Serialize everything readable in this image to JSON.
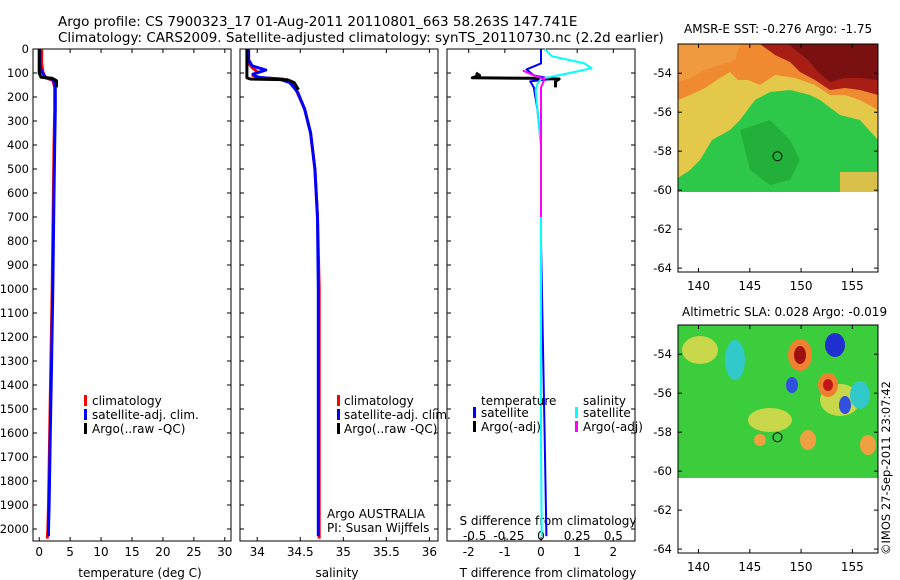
{
  "header": {
    "line1": "Argo profile: CS 7900323_17 01-Aug-2011 20110801_663 58.263S 147.741E",
    "line2": "Climatology: CARS2009. Satellite-adjusted climatology: synTS_20110730.nc (2.2d earlier)"
  },
  "colors": {
    "climatology": "#ff0000",
    "satellite": "#0000ff",
    "argo": "#000000",
    "satellite_s": "#00ffff",
    "argo_s": "#ff00ff"
  },
  "chart_data": [
    {
      "type": "line",
      "id": "temperature",
      "xlabel": "temperature (deg C)",
      "xlim": [
        -1,
        31
      ],
      "ylim": [
        2050,
        0
      ],
      "xticks": [
        0,
        5,
        10,
        15,
        20,
        25,
        30
      ],
      "yticks": [
        0,
        100,
        200,
        300,
        400,
        500,
        600,
        700,
        800,
        900,
        1000,
        1100,
        1200,
        1300,
        1400,
        1500,
        1600,
        1700,
        1800,
        1900,
        2000
      ],
      "series": [
        {
          "name": "climatology",
          "color": "#ff0000",
          "width": 3,
          "points": [
            [
              0.4,
              0
            ],
            [
              0.4,
              60
            ],
            [
              0.6,
              95
            ],
            [
              1.0,
              120
            ],
            [
              2.2,
              130
            ],
            [
              2.5,
              160
            ],
            [
              2.5,
              250
            ],
            [
              2.4,
              400
            ],
            [
              2.3,
              600
            ],
            [
              2.2,
              800
            ],
            [
              2.1,
              1000
            ],
            [
              1.9,
              1300
            ],
            [
              1.7,
              1600
            ],
            [
              1.5,
              1900
            ],
            [
              1.4,
              2000
            ],
            [
              1.3,
              2040
            ]
          ]
        },
        {
          "name": "satellite-adj. clim.",
          "color": "#0000ff",
          "width": 3,
          "points": [
            [
              0.1,
              0
            ],
            [
              0.1,
              60
            ],
            [
              0.3,
              90
            ],
            [
              1.0,
              118
            ],
            [
              2.3,
              128
            ],
            [
              2.6,
              160
            ],
            [
              2.6,
              250
            ],
            [
              2.5,
              400
            ],
            [
              2.4,
              600
            ],
            [
              2.3,
              800
            ],
            [
              2.2,
              1000
            ],
            [
              2.0,
              1300
            ],
            [
              1.8,
              1600
            ],
            [
              1.6,
              1900
            ],
            [
              1.5,
              2000
            ],
            [
              1.5,
              2030
            ]
          ]
        },
        {
          "name": "Argo(..raw -QC)",
          "color": "#000000",
          "width": 3,
          "points": [
            [
              0.0,
              0
            ],
            [
              0.0,
              100
            ],
            [
              0.3,
              118
            ],
            [
              2.1,
              122
            ],
            [
              2.8,
              132
            ],
            [
              2.8,
              160
            ]
          ]
        }
      ]
    },
    {
      "type": "line",
      "id": "salinity",
      "xlabel": "salinity",
      "xlim": [
        33.8,
        36.1
      ],
      "ylim": [
        2050,
        0
      ],
      "xticks": [
        34,
        34.5,
        35,
        35.5,
        36
      ],
      "series": [
        {
          "name": "climatology",
          "color": "#ff0000",
          "width": 3,
          "points": [
            [
              33.9,
              0
            ],
            [
              33.9,
              60
            ],
            [
              33.95,
              80
            ],
            [
              34.0,
              95
            ],
            [
              33.95,
              110
            ],
            [
              34.05,
              120
            ],
            [
              34.3,
              125
            ],
            [
              34.38,
              140
            ],
            [
              34.45,
              170
            ],
            [
              34.55,
              250
            ],
            [
              34.62,
              350
            ],
            [
              34.67,
              500
            ],
            [
              34.7,
              700
            ],
            [
              34.72,
              1000
            ],
            [
              34.72,
              1400
            ],
            [
              34.72,
              1800
            ],
            [
              34.72,
              2040
            ]
          ]
        },
        {
          "name": "satellite-adj. clim.",
          "color": "#0000ff",
          "width": 3,
          "points": [
            [
              33.9,
              0
            ],
            [
              33.9,
              45
            ],
            [
              33.94,
              70
            ],
            [
              34.1,
              88
            ],
            [
              33.95,
              105
            ],
            [
              34.0,
              118
            ],
            [
              34.25,
              125
            ],
            [
              34.38,
              140
            ],
            [
              34.47,
              180
            ],
            [
              34.55,
              250
            ],
            [
              34.62,
              350
            ],
            [
              34.67,
              500
            ],
            [
              34.7,
              700
            ],
            [
              34.71,
              1000
            ],
            [
              34.71,
              1400
            ],
            [
              34.71,
              1800
            ],
            [
              34.71,
              2030
            ]
          ]
        },
        {
          "name": "Argo(..raw -QC)",
          "color": "#000000",
          "width": 3,
          "points": [
            [
              33.88,
              0
            ],
            [
              33.88,
              120
            ],
            [
              33.92,
              125
            ],
            [
              34.35,
              128
            ],
            [
              34.43,
              140
            ],
            [
              34.48,
              170
            ]
          ]
        }
      ]
    },
    {
      "type": "line",
      "id": "difference",
      "xlabel": "T difference from climatology",
      "xlabel_top": "S difference from climatology",
      "xlim": [
        -2.6,
        2.6
      ],
      "ylim": [
        2050,
        0
      ],
      "xticks": [
        -2,
        -1,
        0,
        1,
        2
      ],
      "xticks_top": [
        -0.5,
        -0.25,
        0,
        0.25,
        0.5
      ],
      "legend_titles": {
        "temperature": "temperature",
        "salinity": "salinity"
      },
      "series": [
        {
          "name": "satellite",
          "group": "temperature",
          "color": "#0000ff",
          "width": 2,
          "points": [
            [
              0,
              0
            ],
            [
              0,
              60
            ],
            [
              -0.4,
              85
            ],
            [
              -0.2,
              110
            ],
            [
              0.3,
              125
            ],
            [
              -0.3,
              135
            ],
            [
              -0.2,
              160
            ],
            [
              -0.1,
              250
            ],
            [
              0.0,
              400
            ],
            [
              0.0,
              800
            ],
            [
              0.05,
              1200
            ],
            [
              0.1,
              1600
            ],
            [
              0.15,
              2030
            ]
          ]
        },
        {
          "name": "Argo(-adj)",
          "group": "temperature",
          "color": "#000000",
          "width": 3,
          "points": [
            [
              -1.8,
              100
            ],
            [
              -1.7,
              110
            ],
            [
              -1.9,
              120
            ],
            [
              -0.3,
              122
            ],
            [
              0.5,
              125
            ],
            [
              0.4,
              135
            ],
            [
              0.4,
              160
            ]
          ]
        },
        {
          "name": "satellite",
          "group": "salinity",
          "color": "#00ffff",
          "width": 2,
          "points": [
            [
              0.1,
              0
            ],
            [
              0.3,
              30
            ],
            [
              1.2,
              60
            ],
            [
              1.4,
              80
            ],
            [
              0.8,
              100
            ],
            [
              0.3,
              115
            ],
            [
              0.0,
              125
            ],
            [
              -0.1,
              145
            ],
            [
              -0.15,
              170
            ],
            [
              -0.1,
              250
            ],
            [
              0.0,
              400
            ],
            [
              0.0,
              800
            ],
            [
              0.0,
              1200
            ],
            [
              0.0,
              1600
            ],
            [
              0.02,
              2030
            ]
          ]
        },
        {
          "name": "Argo(-adj)",
          "group": "salinity",
          "color": "#ff00ff",
          "width": 2,
          "points": [
            [
              -0.5,
              90
            ],
            [
              -0.2,
              110
            ],
            [
              0.1,
              125
            ],
            [
              0.0,
              160
            ],
            [
              0.0,
              250
            ],
            [
              0.0,
              400
            ],
            [
              0.0,
              700
            ]
          ]
        }
      ]
    },
    {
      "type": "heatmap",
      "id": "sst_map",
      "title": "AMSR-E SST: -0.276 Argo: -1.75",
      "xlim": [
        138,
        157.5
      ],
      "ylim": [
        -64.2,
        -52.5
      ],
      "xticks": [
        140,
        145,
        150,
        155
      ],
      "yticks": [
        -54,
        -56,
        -58,
        -60,
        -62,
        -64
      ],
      "marker": {
        "lon": 147.7,
        "lat": -58.26
      },
      "data_south_limit": -60
    },
    {
      "type": "heatmap",
      "id": "sla_map",
      "title": "Altimetric SLA: 0.028 Argo: -0.019",
      "xlim": [
        138,
        157.5
      ],
      "ylim": [
        -64.2,
        -52.5
      ],
      "xticks": [
        140,
        145,
        150,
        155
      ],
      "yticks": [
        -54,
        -56,
        -58,
        -60,
        -62,
        -64
      ],
      "marker": {
        "lon": 147.7,
        "lat": -58.26
      },
      "data_south_limit": -60
    }
  ],
  "legends": {
    "temp": [
      "climatology",
      "satellite-adj. clim.",
      "Argo(..raw -QC)"
    ],
    "sal": [
      "climatology",
      "satellite-adj. clim.",
      "Argo(..raw -QC)"
    ],
    "diff_temp_title": "temperature",
    "diff_sal_title": "salinity",
    "diff_temp": [
      "satellite",
      "Argo(-adj)"
    ],
    "diff_sal": [
      "satellite",
      "Argo(-adj)"
    ]
  },
  "credits": {
    "line1": "Argo AUSTRALIA",
    "line2": "PI: Susan Wijffels",
    "stamp": "©IMOS 27-Sep-2011 23:07:42"
  }
}
